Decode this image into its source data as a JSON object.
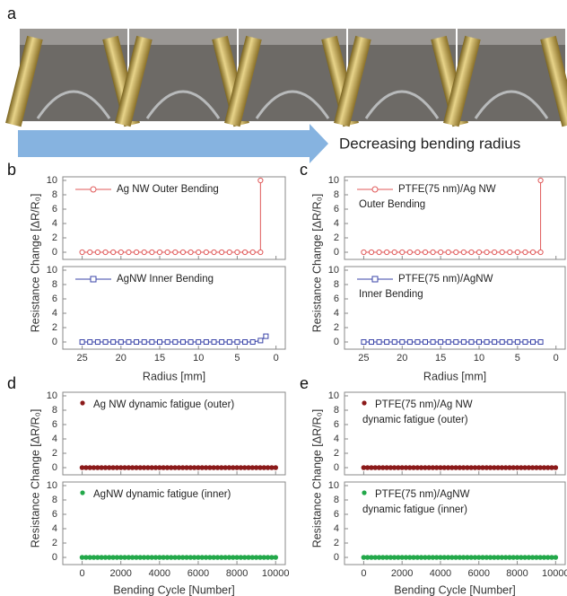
{
  "panel_labels": [
    "a",
    "b",
    "c",
    "d",
    "e"
  ],
  "arrow_text": "Decreasing bending radius",
  "chart_data": [
    {
      "type": "line",
      "ylabel": "Resistance Change [ΔR/R₀]",
      "xlabel": "Radius [mm]",
      "xlim": [
        27.5,
        -1.2
      ],
      "xticks": [
        25,
        20,
        15,
        10,
        5,
        0
      ],
      "ylim": [
        -1,
        10.5
      ],
      "yticks": [
        0,
        2,
        4,
        6,
        8,
        10
      ],
      "subplots": [
        {
          "series": [
            {
              "name": "Ag NW Outer Bending",
              "color": "#e05a5a",
              "marker": "circle",
              "x": [
                25,
                24,
                23,
                22,
                21,
                20,
                19,
                18,
                17,
                16,
                15,
                14,
                13,
                12,
                11,
                10,
                9,
                8,
                7,
                6,
                5,
                4,
                3,
                2,
                2
              ],
              "values": [
                0,
                0,
                0,
                0,
                0,
                0,
                0,
                0,
                0,
                0,
                0,
                0,
                0,
                0,
                0,
                0,
                0,
                0,
                0,
                0,
                0,
                0,
                0,
                0,
                10
              ]
            }
          ]
        },
        {
          "series": [
            {
              "name": "AgNW Inner Bending",
              "color": "#3b45a8",
              "marker": "square",
              "x": [
                25,
                24,
                23,
                22,
                21,
                20,
                19,
                18,
                17,
                16,
                15,
                14,
                13,
                12,
                11,
                10,
                9,
                8,
                7,
                6,
                5,
                4,
                3,
                2,
                1.3
              ],
              "values": [
                0,
                0,
                0,
                0,
                0,
                0,
                0,
                0,
                0,
                0,
                0,
                0,
                0,
                0,
                0,
                0,
                0,
                0,
                0,
                0,
                0,
                0,
                0,
                0.2,
                0.8
              ]
            }
          ]
        }
      ]
    },
    {
      "type": "line",
      "ylabel": "Resistance Change [ΔR/R₀]",
      "xlabel": "Radius [mm]",
      "xlim": [
        27.5,
        -1.2
      ],
      "xticks": [
        25,
        20,
        15,
        10,
        5,
        0
      ],
      "ylim": [
        -1,
        10.5
      ],
      "yticks": [
        0,
        2,
        4,
        6,
        8,
        10
      ],
      "subplots": [
        {
          "series": [
            {
              "name": [
                "PTFE(75 nm)/Ag NW",
                "Outer Bending"
              ],
              "color": "#e05a5a",
              "marker": "circle",
              "x": [
                25,
                24,
                23,
                22,
                21,
                20,
                19,
                18,
                17,
                16,
                15,
                14,
                13,
                12,
                11,
                10,
                9,
                8,
                7,
                6,
                5,
                4,
                3,
                2,
                2
              ],
              "values": [
                0,
                0,
                0,
                0,
                0,
                0,
                0,
                0,
                0,
                0,
                0,
                0,
                0,
                0,
                0,
                0,
                0,
                0,
                0,
                0,
                0,
                0,
                0,
                0,
                10
              ]
            }
          ]
        },
        {
          "series": [
            {
              "name": [
                "PTFE(75 nm)/AgNW",
                "Inner Bending"
              ],
              "color": "#3b45a8",
              "marker": "square",
              "x": [
                25,
                24,
                23,
                22,
                21,
                20,
                19,
                18,
                17,
                16,
                15,
                14,
                13,
                12,
                11,
                10,
                9,
                8,
                7,
                6,
                5,
                4,
                3,
                2
              ],
              "values": [
                0,
                0,
                0,
                0,
                0,
                0,
                0,
                0,
                0,
                0,
                0,
                0,
                0,
                0,
                0,
                0,
                0,
                0,
                0,
                0,
                0,
                0,
                0,
                0
              ]
            }
          ]
        }
      ]
    },
    {
      "type": "scatter",
      "ylabel": "Resistance Change [ΔR/R₀]",
      "xlabel": "Bending Cycle [Number]",
      "xlim": [
        -1000,
        10500
      ],
      "xticks": [
        0,
        2000,
        4000,
        6000,
        8000,
        10000
      ],
      "ylim": [
        -1,
        10.5
      ],
      "yticks": [
        0,
        2,
        4,
        6,
        8,
        10
      ],
      "subplots": [
        {
          "series": [
            {
              "name": "Ag NW dynamic fatigue (outer)",
              "color": "#8b1a1a",
              "x": [
                0,
                200,
                400,
                600,
                800,
                1000,
                1200,
                1400,
                1600,
                1800,
                2000,
                2200,
                2400,
                2600,
                2800,
                3000,
                3200,
                3400,
                3600,
                3800,
                4000,
                4200,
                4400,
                4600,
                4800,
                5000,
                5200,
                5400,
                5600,
                5800,
                6000,
                6200,
                6400,
                6600,
                6800,
                7000,
                7200,
                7400,
                7600,
                7800,
                8000,
                8200,
                8400,
                8600,
                8800,
                9000,
                9200,
                9400,
                9600,
                9800,
                10000
              ],
              "values": [
                0,
                0,
                0,
                0,
                0,
                0,
                0,
                0,
                0,
                0,
                0,
                0,
                0,
                0,
                0,
                0,
                0,
                0,
                0,
                0,
                0,
                0,
                0,
                0,
                0,
                0,
                0,
                0,
                0,
                0,
                0,
                0,
                0,
                0,
                0,
                0,
                0,
                0,
                0,
                0,
                0,
                0,
                0,
                0,
                0,
                0,
                0,
                0,
                0,
                0,
                0
              ]
            }
          ]
        },
        {
          "series": [
            {
              "name": "AgNW dynamic fatigue (inner)",
              "color": "#23a84a",
              "x": [
                0,
                200,
                400,
                600,
                800,
                1000,
                1200,
                1400,
                1600,
                1800,
                2000,
                2200,
                2400,
                2600,
                2800,
                3000,
                3200,
                3400,
                3600,
                3800,
                4000,
                4200,
                4400,
                4600,
                4800,
                5000,
                5200,
                5400,
                5600,
                5800,
                6000,
                6200,
                6400,
                6600,
                6800,
                7000,
                7200,
                7400,
                7600,
                7800,
                8000,
                8200,
                8400,
                8600,
                8800,
                9000,
                9200,
                9400,
                9600,
                9800,
                10000
              ],
              "values": [
                0,
                0,
                0,
                0,
                0,
                0,
                0,
                0,
                0,
                0,
                0,
                0,
                0,
                0,
                0,
                0,
                0,
                0,
                0,
                0,
                0,
                0,
                0,
                0,
                0,
                0,
                0,
                0,
                0,
                0,
                0,
                0,
                0,
                0,
                0,
                0,
                0,
                0,
                0,
                0,
                0,
                0,
                0,
                0,
                0,
                0,
                0,
                0,
                0,
                0,
                0
              ]
            }
          ]
        }
      ]
    },
    {
      "type": "scatter",
      "ylabel": "Resistance Change [ΔR/R₀]",
      "xlabel": "Bending Cycle [Number]",
      "xlim": [
        -1000,
        10500
      ],
      "xticks": [
        0,
        2000,
        4000,
        6000,
        8000,
        10000
      ],
      "ylim": [
        -1,
        10.5
      ],
      "yticks": [
        0,
        2,
        4,
        6,
        8,
        10
      ],
      "subplots": [
        {
          "series": [
            {
              "name": [
                "PTFE(75 nm)/Ag NW",
                "dynamic fatigue (outer)"
              ],
              "color": "#8b1a1a",
              "x": [
                0,
                200,
                400,
                600,
                800,
                1000,
                1200,
                1400,
                1600,
                1800,
                2000,
                2200,
                2400,
                2600,
                2800,
                3000,
                3200,
                3400,
                3600,
                3800,
                4000,
                4200,
                4400,
                4600,
                4800,
                5000,
                5200,
                5400,
                5600,
                5800,
                6000,
                6200,
                6400,
                6600,
                6800,
                7000,
                7200,
                7400,
                7600,
                7800,
                8000,
                8200,
                8400,
                8600,
                8800,
                9000,
                9200,
                9400,
                9600,
                9800,
                10000
              ],
              "values": [
                0,
                0,
                0,
                0,
                0,
                0,
                0,
                0,
                0,
                0,
                0,
                0,
                0,
                0,
                0,
                0,
                0,
                0,
                0,
                0,
                0,
                0,
                0,
                0,
                0,
                0,
                0,
                0,
                0,
                0,
                0,
                0,
                0,
                0,
                0,
                0,
                0,
                0,
                0,
                0,
                0,
                0,
                0,
                0,
                0,
                0,
                0,
                0,
                0,
                0,
                0
              ]
            }
          ]
        },
        {
          "series": [
            {
              "name": [
                "PTFE(75 nm)/AgNW",
                "dynamic fatigue (inner)"
              ],
              "color": "#23a84a",
              "x": [
                0,
                200,
                400,
                600,
                800,
                1000,
                1200,
                1400,
                1600,
                1800,
                2000,
                2200,
                2400,
                2600,
                2800,
                3000,
                3200,
                3400,
                3600,
                3800,
                4000,
                4200,
                4400,
                4600,
                4800,
                5000,
                5200,
                5400,
                5600,
                5800,
                6000,
                6200,
                6400,
                6600,
                6800,
                7000,
                7200,
                7400,
                7600,
                7800,
                8000,
                8200,
                8400,
                8600,
                8800,
                9000,
                9200,
                9400,
                9600,
                9800,
                10000
              ],
              "values": [
                0,
                0,
                0,
                0,
                0,
                0,
                0,
                0,
                0,
                0,
                0,
                0,
                0,
                0,
                0,
                0,
                0,
                0,
                0,
                0,
                0,
                0,
                0,
                0,
                0,
                0,
                0,
                0,
                0,
                0,
                0,
                0,
                0,
                0,
                0,
                0,
                0,
                0,
                0,
                0,
                0,
                0,
                0,
                0,
                0,
                0,
                0,
                0,
                0,
                0,
                0
              ]
            }
          ]
        }
      ]
    }
  ]
}
